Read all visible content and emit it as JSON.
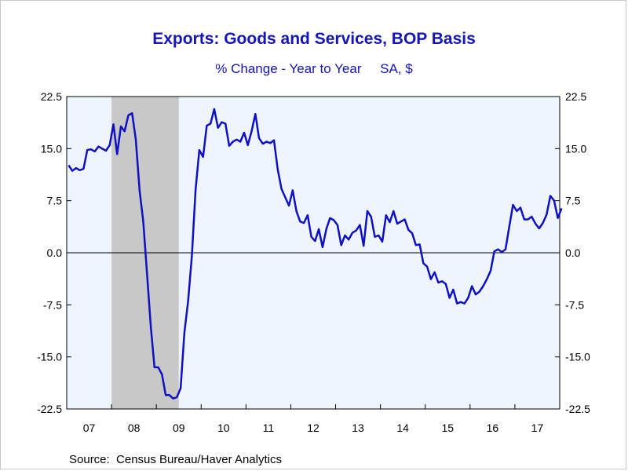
{
  "chart_data": {
    "type": "line",
    "title": "Exports: Goods and Services, BOP Basis",
    "subtitle_left": "% Change - Year to Year",
    "subtitle_right": "SA, $",
    "source": "Source:  Census Bureau/Haver Analytics",
    "xlabel": "",
    "ylabel": "",
    "ylim": [
      -22.5,
      22.5
    ],
    "yticks": [
      22.5,
      15.0,
      7.5,
      0.0,
      -7.5,
      -15.0,
      -22.5
    ],
    "ytick_labels": [
      "22.5",
      "15.0",
      "7.5",
      "0.0",
      "-7.5",
      "-15.0",
      "-22.5"
    ],
    "xlim": [
      "2007-01",
      "2017-12"
    ],
    "x_labels": [
      "07",
      "08",
      "09",
      "10",
      "11",
      "12",
      "13",
      "14",
      "15",
      "16",
      "17"
    ],
    "recession_shading": {
      "start": "2008-01",
      "end": "2009-06",
      "color": "#c8c8c8"
    },
    "plot_background": "#eef5ff",
    "line_color": "#1010c0",
    "zero_line": true,
    "grid": false,
    "series": [
      {
        "values": [
          12.6,
          11.8,
          12.2,
          11.9,
          12.1,
          14.8,
          14.9,
          14.6,
          15.3,
          15.0,
          14.7,
          15.5,
          18.5,
          14.2,
          18.2,
          17.5,
          19.8,
          20.1,
          16.3,
          9.0,
          4.5,
          -3.0,
          -10.5,
          -16.5,
          -16.5,
          -17.5,
          -20.5,
          -20.5,
          -21.0,
          -20.8,
          -19.5,
          -11.5,
          -7.0,
          -0.5,
          9.0,
          14.8,
          13.8,
          18.3,
          18.6,
          20.7,
          18.0,
          18.8,
          18.6,
          15.4,
          16.0,
          16.3,
          16.0,
          17.3,
          15.5,
          17.5,
          20.0,
          16.5,
          15.7,
          16.0,
          15.8,
          16.2,
          12.0,
          9.2,
          8.0,
          6.8,
          9.0,
          6.0,
          4.5,
          4.3,
          5.4,
          2.3,
          1.7,
          3.4,
          0.8,
          3.4,
          5.0,
          4.7,
          4.0,
          1.1,
          2.5,
          1.9,
          2.9,
          3.2,
          4.0,
          1.0,
          6.0,
          5.2,
          2.3,
          2.5,
          1.6,
          5.4,
          4.4,
          6.0,
          4.2,
          4.5,
          4.8,
          3.3,
          2.8,
          1.1,
          1.2,
          -1.5,
          -2.0,
          -3.8,
          -2.8,
          -4.3,
          -4.1,
          -4.5,
          -6.5,
          -5.3,
          -7.3,
          -7.1,
          -7.3,
          -6.5,
          -4.8,
          -6.0,
          -5.6,
          -4.8,
          -3.8,
          -2.6,
          0.2,
          0.5,
          0.1,
          0.5,
          3.8,
          6.9,
          6.0,
          6.5,
          4.8,
          4.8,
          5.2,
          4.2,
          3.5,
          4.3,
          5.5,
          8.2,
          7.5,
          5.0,
          6.4
        ]
      }
    ]
  }
}
